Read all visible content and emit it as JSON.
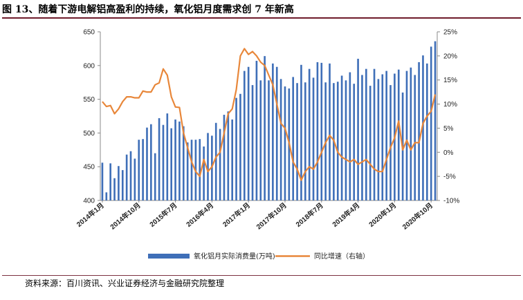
{
  "title": "图 13、随着下游电解铝高盈利的持续，氧化铝月度需求创 7 年新高",
  "source": "资料来源：百川资讯、兴业证券经济与金融研究院整理",
  "chart_data": {
    "type": "bar+line",
    "left_axis": {
      "ylim": [
        400,
        650
      ],
      "ticks": [
        "400",
        "450",
        "500",
        "550",
        "600",
        "650"
      ]
    },
    "right_axis": {
      "ylim": [
        -10,
        25
      ],
      "ticks": [
        "-10%",
        "-5%",
        "0%",
        "5%",
        "10%",
        "15%",
        "20%",
        "25%"
      ]
    },
    "x_tick_labels": [
      "2014年1月",
      "2014年10月",
      "2015年7月",
      "2016年4月",
      "2017年1月",
      "2017年10月",
      "2018年7月",
      "2019年4月",
      "2020年1月",
      "2020年10月"
    ],
    "series": [
      {
        "name": "氧化铝月实际消费量(万吨)",
        "type": "bar",
        "axis": "left",
        "color": "#3f6fb8",
        "values": [
          456,
          412,
          455,
          433,
          451,
          445,
          468,
          473,
          462,
          490,
          491,
          508,
          513,
          470,
          522,
          512,
          529,
          507,
          520,
          517,
          510,
          486,
          490,
          490,
          491,
          480,
          500,
          496,
          515,
          506,
          527,
          532,
          520,
          552,
          558,
          592,
          598,
          571,
          607,
          578,
          614,
          578,
          603,
          598,
          580,
          569,
          566,
          583,
          574,
          601,
          575,
          595,
          582,
          605,
          604,
          575,
          603,
          574,
          576,
          585,
          578,
          590,
          573,
          610,
          586,
          595,
          570,
          595,
          580,
          587,
          592,
          571,
          588,
          594,
          560,
          592,
          597,
          586,
          605,
          615,
          603,
          628,
          636
        ]
      },
      {
        "name": "同比增速（右轴）",
        "type": "line",
        "axis": "right",
        "color": "#e8873a",
        "values": [
          10.5,
          9.5,
          9.7,
          8.0,
          9.0,
          10.5,
          11.5,
          11.5,
          11.3,
          11.3,
          12.7,
          12.5,
          12.5,
          14.0,
          14.4,
          17.3,
          16.0,
          11.5,
          9.4,
          9.3,
          4.0,
          1.0,
          -2.0,
          -4.0,
          -5.0,
          -1.5,
          -4.0,
          -3.0,
          -1.0,
          0.0,
          4.0,
          8.0,
          9.0,
          13.0,
          20.0,
          21.5,
          20.3,
          20.9,
          20.0,
          18.7,
          18.0,
          16.0,
          14.0,
          10.0,
          6.0,
          5.0,
          2.0,
          -2.0,
          -3.5,
          -5.8,
          -4.0,
          -3.0,
          -3.5,
          -2.0,
          0.0,
          2.0,
          3.5,
          2.5,
          0.0,
          -1.0,
          -1.5,
          -2.0,
          -1.5,
          -2.5,
          -2.0,
          -1.5,
          -2.5,
          -3.5,
          -4.0,
          -4.0,
          -1.5,
          1.0,
          3.0,
          6.5,
          0.5,
          2.5,
          0.5,
          2.0,
          2.0,
          6.0,
          7.5,
          8.5,
          12.0
        ]
      }
    ],
    "legend_position": "bottom"
  }
}
